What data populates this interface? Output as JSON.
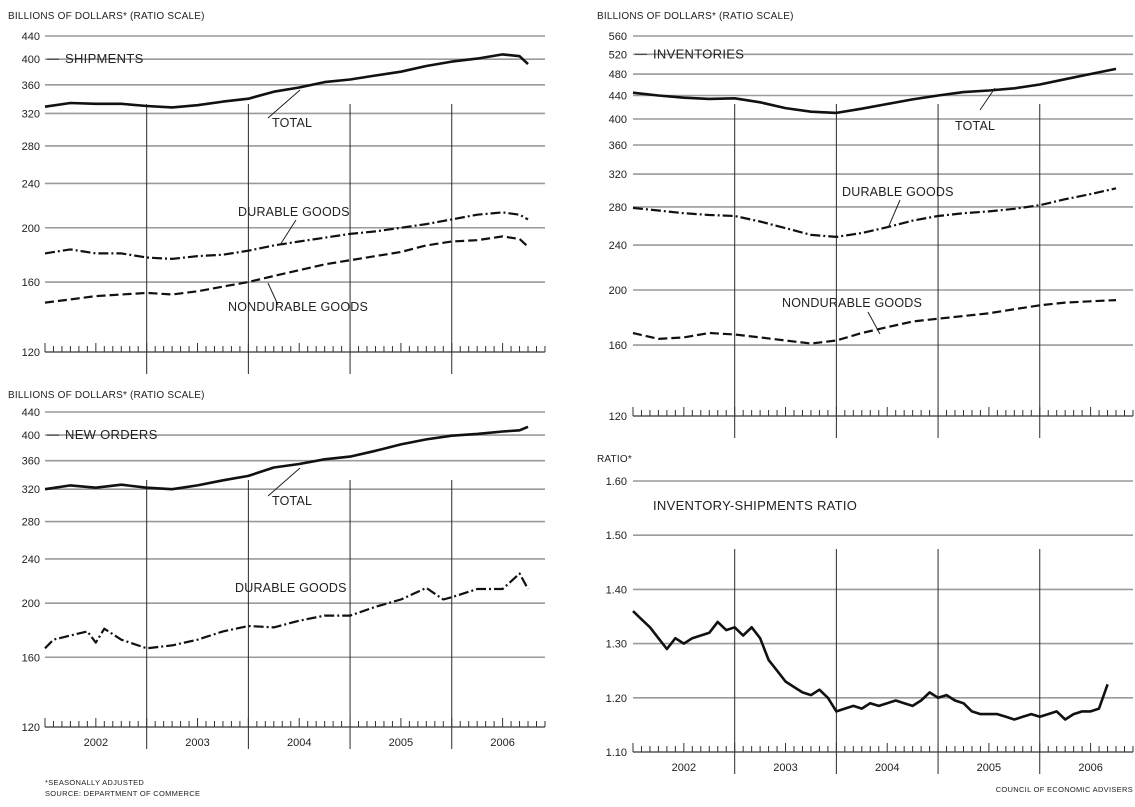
{
  "footnotes": {
    "adjusted": "*SEASONALLY ADJUSTED",
    "source": "SOURCE: DEPARTMENT OF COMMERCE",
    "agency": "COUNCIL OF ECONOMIC ADVISERS"
  },
  "chart_data": [
    {
      "id": "shipments",
      "type": "line",
      "ylabel": "BILLIONS OF DOLLARS* (RATIO SCALE)",
      "title": "SHIPMENTS",
      "y_scale": "log",
      "ylim": [
        120,
        440
      ],
      "yticks": [
        120,
        160,
        200,
        240,
        280,
        320,
        360,
        400,
        440
      ],
      "xlim": [
        2002.0,
        2006.917
      ],
      "years": [
        "2002",
        "2003",
        "2004",
        "2005",
        "2006"
      ],
      "series": [
        {
          "name": "TOTAL",
          "style": "solid",
          "label_pos": "right",
          "points": [
            [
              2002.0,
              329
            ],
            [
              2002.25,
              334
            ],
            [
              2002.5,
              333
            ],
            [
              2002.75,
              333
            ],
            [
              2003.0,
              330
            ],
            [
              2003.25,
              328
            ],
            [
              2003.5,
              331
            ],
            [
              2003.75,
              336
            ],
            [
              2004.0,
              340
            ],
            [
              2004.25,
              350
            ],
            [
              2004.5,
              356
            ],
            [
              2004.75,
              364
            ],
            [
              2005.0,
              368
            ],
            [
              2005.25,
              374
            ],
            [
              2005.5,
              380
            ],
            [
              2005.75,
              389
            ],
            [
              2006.0,
              396
            ],
            [
              2006.25,
              401
            ],
            [
              2006.5,
              408
            ],
            [
              2006.667,
              405
            ],
            [
              2006.75,
              392
            ]
          ]
        },
        {
          "name": "DURABLE GOODS",
          "style": "dashdot",
          "label_pos": "upper",
          "points": [
            [
              2002.0,
              180
            ],
            [
              2002.25,
              183
            ],
            [
              2002.5,
              180
            ],
            [
              2002.75,
              180
            ],
            [
              2003.0,
              177
            ],
            [
              2003.25,
              176
            ],
            [
              2003.5,
              178
            ],
            [
              2003.75,
              179
            ],
            [
              2004.0,
              182
            ],
            [
              2004.25,
              186
            ],
            [
              2004.5,
              189
            ],
            [
              2004.75,
              192
            ],
            [
              2005.0,
              195
            ],
            [
              2005.25,
              197
            ],
            [
              2005.5,
              200
            ],
            [
              2005.75,
              203
            ],
            [
              2006.0,
              207
            ],
            [
              2006.25,
              211
            ],
            [
              2006.5,
              213
            ],
            [
              2006.667,
              211
            ],
            [
              2006.75,
              207
            ]
          ]
        },
        {
          "name": "NONDURABLE GOODS",
          "style": "dashed",
          "label_pos": "lower",
          "points": [
            [
              2002.0,
              147
            ],
            [
              2002.25,
              149
            ],
            [
              2002.5,
              151
            ],
            [
              2002.75,
              152
            ],
            [
              2003.0,
              153
            ],
            [
              2003.25,
              152
            ],
            [
              2003.5,
              154
            ],
            [
              2003.75,
              157
            ],
            [
              2004.0,
              160
            ],
            [
              2004.25,
              164
            ],
            [
              2004.5,
              168
            ],
            [
              2004.75,
              172
            ],
            [
              2005.0,
              175
            ],
            [
              2005.25,
              178
            ],
            [
              2005.5,
              181
            ],
            [
              2005.75,
              186
            ],
            [
              2006.0,
              189
            ],
            [
              2006.25,
              190
            ],
            [
              2006.5,
              193
            ],
            [
              2006.667,
              191
            ],
            [
              2006.75,
              185
            ]
          ]
        }
      ]
    },
    {
      "id": "inventories",
      "type": "line",
      "ylabel": "BILLIONS OF DOLLARS* (RATIO SCALE)",
      "title": "INVENTORIES",
      "y_scale": "log",
      "ylim": [
        120,
        560
      ],
      "yticks": [
        120,
        160,
        200,
        240,
        280,
        320,
        360,
        400,
        440,
        480,
        520,
        560
      ],
      "xlim": [
        2002.0,
        2006.917
      ],
      "years": [
        "2002",
        "2003",
        "2004",
        "2005",
        "2006"
      ],
      "series": [
        {
          "name": "TOTAL",
          "style": "solid",
          "label_pos": "right",
          "points": [
            [
              2002.0,
              445
            ],
            [
              2002.25,
              440
            ],
            [
              2002.5,
              436
            ],
            [
              2002.75,
              434
            ],
            [
              2003.0,
              435
            ],
            [
              2003.25,
              428
            ],
            [
              2003.5,
              418
            ],
            [
              2003.75,
              412
            ],
            [
              2004.0,
              410
            ],
            [
              2004.25,
              417
            ],
            [
              2004.5,
              425
            ],
            [
              2004.75,
              433
            ],
            [
              2005.0,
              440
            ],
            [
              2005.25,
              446
            ],
            [
              2005.5,
              449
            ],
            [
              2005.75,
              453
            ],
            [
              2006.0,
              460
            ],
            [
              2006.25,
              470
            ],
            [
              2006.5,
              480
            ],
            [
              2006.75,
              490
            ]
          ]
        },
        {
          "name": "DURABLE GOODS",
          "style": "dashdot",
          "label_pos": "upper",
          "points": [
            [
              2002.0,
              279
            ],
            [
              2002.25,
              276
            ],
            [
              2002.5,
              273
            ],
            [
              2002.75,
              271
            ],
            [
              2003.0,
              270
            ],
            [
              2003.25,
              264
            ],
            [
              2003.5,
              257
            ],
            [
              2003.75,
              250
            ],
            [
              2004.0,
              248
            ],
            [
              2004.25,
              252
            ],
            [
              2004.5,
              258
            ],
            [
              2004.75,
              265
            ],
            [
              2005.0,
              270
            ],
            [
              2005.25,
              273
            ],
            [
              2005.5,
              275
            ],
            [
              2005.75,
              278
            ],
            [
              2006.0,
              282
            ],
            [
              2006.25,
              289
            ],
            [
              2006.5,
              295
            ],
            [
              2006.75,
              302
            ]
          ]
        },
        {
          "name": "NONDURABLE GOODS",
          "style": "dashed",
          "label_pos": "lower",
          "points": [
            [
              2002.0,
              168
            ],
            [
              2002.25,
              164
            ],
            [
              2002.5,
              165
            ],
            [
              2002.75,
              168
            ],
            [
              2003.0,
              167
            ],
            [
              2003.25,
              165
            ],
            [
              2003.5,
              163
            ],
            [
              2003.75,
              161
            ],
            [
              2004.0,
              163
            ],
            [
              2004.25,
              168
            ],
            [
              2004.5,
              172
            ],
            [
              2004.75,
              176
            ],
            [
              2005.0,
              178
            ],
            [
              2005.25,
              180
            ],
            [
              2005.5,
              182
            ],
            [
              2005.75,
              185
            ],
            [
              2006.0,
              188
            ],
            [
              2006.25,
              190
            ],
            [
              2006.5,
              191
            ],
            [
              2006.75,
              192
            ]
          ]
        }
      ]
    },
    {
      "id": "new-orders",
      "type": "line",
      "ylabel": "BILLIONS OF DOLLARS* (RATIO SCALE)",
      "title": "NEW ORDERS",
      "y_scale": "log",
      "ylim": [
        120,
        440
      ],
      "yticks": [
        120,
        160,
        200,
        240,
        280,
        320,
        360,
        400,
        440
      ],
      "xlim": [
        2002.0,
        2006.917
      ],
      "years": [
        "2002",
        "2003",
        "2004",
        "2005",
        "2006"
      ],
      "series": [
        {
          "name": "TOTAL",
          "style": "solid",
          "label_pos": "right",
          "points": [
            [
              2002.0,
              320
            ],
            [
              2002.25,
              325
            ],
            [
              2002.5,
              322
            ],
            [
              2002.75,
              326
            ],
            [
              2003.0,
              322
            ],
            [
              2003.25,
              320
            ],
            [
              2003.5,
              325
            ],
            [
              2003.75,
              332
            ],
            [
              2004.0,
              338
            ],
            [
              2004.25,
              350
            ],
            [
              2004.5,
              355
            ],
            [
              2004.75,
              362
            ],
            [
              2005.0,
              366
            ],
            [
              2005.25,
              375
            ],
            [
              2005.5,
              385
            ],
            [
              2005.75,
              393
            ],
            [
              2006.0,
              399
            ],
            [
              2006.25,
              402
            ],
            [
              2006.5,
              406
            ],
            [
              2006.667,
              408
            ],
            [
              2006.75,
              414
            ]
          ]
        },
        {
          "name": "DURABLE GOODS",
          "style": "dashdot",
          "label_pos": "upper",
          "points": [
            [
              2002.0,
              166
            ],
            [
              2002.083,
              172
            ],
            [
              2002.25,
              175
            ],
            [
              2002.417,
              178
            ],
            [
              2002.5,
              170
            ],
            [
              2002.583,
              180
            ],
            [
              2002.75,
              172
            ],
            [
              2003.0,
              166
            ],
            [
              2003.25,
              168
            ],
            [
              2003.5,
              172
            ],
            [
              2003.75,
              178
            ],
            [
              2004.0,
              182
            ],
            [
              2004.25,
              181
            ],
            [
              2004.5,
              186
            ],
            [
              2004.75,
              190
            ],
            [
              2005.0,
              190
            ],
            [
              2005.25,
              197
            ],
            [
              2005.5,
              203
            ],
            [
              2005.75,
              213
            ],
            [
              2005.917,
              203
            ],
            [
              2006.0,
              205
            ],
            [
              2006.25,
              212
            ],
            [
              2006.5,
              212
            ],
            [
              2006.667,
              226
            ],
            [
              2006.75,
              212
            ]
          ]
        }
      ]
    },
    {
      "id": "inventory-shipments-ratio",
      "type": "line",
      "ylabel": "RATIO*",
      "title": "INVENTORY-SHIPMENTS RATIO",
      "y_scale": "linear",
      "ylim": [
        1.1,
        1.6
      ],
      "yticks": [
        "1.10",
        "1.20",
        "1.30",
        "1.40",
        "1.50",
        "1.60"
      ],
      "xlim": [
        2002.0,
        2006.917
      ],
      "years": [
        "2002",
        "2003",
        "2004",
        "2005",
        "2006"
      ],
      "series": [
        {
          "name": "",
          "style": "solid",
          "label_pos": "",
          "points": [
            [
              2002.0,
              1.36
            ],
            [
              2002.083,
              1.345
            ],
            [
              2002.167,
              1.33
            ],
            [
              2002.25,
              1.31
            ],
            [
              2002.333,
              1.29
            ],
            [
              2002.417,
              1.31
            ],
            [
              2002.5,
              1.3
            ],
            [
              2002.583,
              1.31
            ],
            [
              2002.667,
              1.315
            ],
            [
              2002.75,
              1.32
            ],
            [
              2002.833,
              1.34
            ],
            [
              2002.917,
              1.325
            ],
            [
              2003.0,
              1.33
            ],
            [
              2003.083,
              1.315
            ],
            [
              2003.167,
              1.33
            ],
            [
              2003.25,
              1.31
            ],
            [
              2003.333,
              1.27
            ],
            [
              2003.417,
              1.25
            ],
            [
              2003.5,
              1.23
            ],
            [
              2003.583,
              1.22
            ],
            [
              2003.667,
              1.21
            ],
            [
              2003.75,
              1.205
            ],
            [
              2003.833,
              1.215
            ],
            [
              2003.917,
              1.2
            ],
            [
              2004.0,
              1.175
            ],
            [
              2004.083,
              1.18
            ],
            [
              2004.167,
              1.185
            ],
            [
              2004.25,
              1.18
            ],
            [
              2004.333,
              1.19
            ],
            [
              2004.417,
              1.185
            ],
            [
              2004.5,
              1.19
            ],
            [
              2004.583,
              1.195
            ],
            [
              2004.667,
              1.19
            ],
            [
              2004.75,
              1.185
            ],
            [
              2004.833,
              1.195
            ],
            [
              2004.917,
              1.21
            ],
            [
              2005.0,
              1.2
            ],
            [
              2005.083,
              1.205
            ],
            [
              2005.167,
              1.195
            ],
            [
              2005.25,
              1.19
            ],
            [
              2005.333,
              1.175
            ],
            [
              2005.417,
              1.17
            ],
            [
              2005.5,
              1.17
            ],
            [
              2005.583,
              1.17
            ],
            [
              2005.667,
              1.165
            ],
            [
              2005.75,
              1.16
            ],
            [
              2005.833,
              1.165
            ],
            [
              2005.917,
              1.17
            ],
            [
              2006.0,
              1.165
            ],
            [
              2006.083,
              1.17
            ],
            [
              2006.167,
              1.175
            ],
            [
              2006.25,
              1.16
            ],
            [
              2006.333,
              1.17
            ],
            [
              2006.417,
              1.175
            ],
            [
              2006.5,
              1.175
            ],
            [
              2006.583,
              1.18
            ],
            [
              2006.667,
              1.225
            ]
          ]
        }
      ]
    }
  ]
}
